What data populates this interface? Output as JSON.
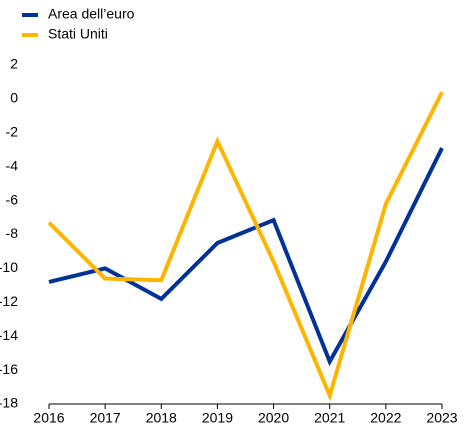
{
  "chart_data": {
    "type": "line",
    "categories": [
      "2016",
      "2017",
      "2018",
      "2019",
      "2020",
      "2021",
      "2022",
      "2023"
    ],
    "series": [
      {
        "name": "Area dell’euro",
        "color": "#003299",
        "values": [
          -10.8,
          -10.0,
          -11.8,
          -8.5,
          -7.15,
          -15.5,
          -9.6,
          -2.9
        ]
      },
      {
        "name": "Stati Uniti",
        "color": "#ffb400",
        "values": [
          -7.3,
          -10.6,
          -10.7,
          -2.5,
          -9.6,
          -17.5,
          -6.2,
          0.4
        ]
      }
    ],
    "ylim": [
      -18,
      2
    ],
    "yticks": [
      -18,
      -16,
      -14,
      -12,
      -10,
      -8,
      -6,
      -4,
      -2,
      0,
      2
    ],
    "legend": "top-left"
  }
}
